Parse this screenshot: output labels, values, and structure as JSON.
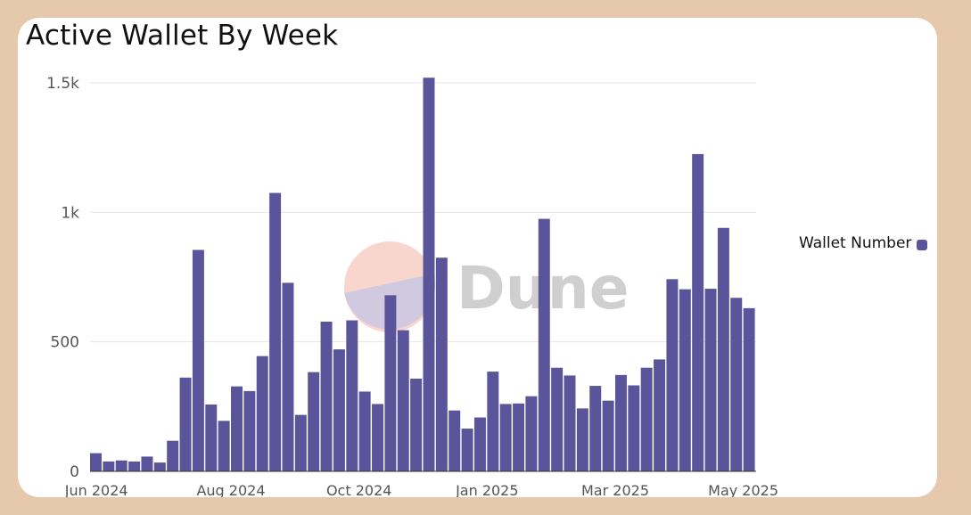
{
  "chart_data": {
    "type": "bar",
    "title": "Active Wallet By Week",
    "xlabel": "",
    "ylabel": "",
    "series": [
      {
        "name": "Wallet Number",
        "color": "#5a559a",
        "values": [
          70,
          38,
          42,
          38,
          57,
          34,
          118,
          362,
          855,
          258,
          195,
          328,
          310,
          445,
          1075,
          728,
          218,
          383,
          578,
          471,
          583,
          308,
          260,
          680,
          545,
          358,
          1520,
          825,
          235,
          165,
          208,
          385,
          260,
          262,
          290,
          975,
          400,
          370,
          243,
          330,
          273,
          372,
          332,
          400,
          432,
          742,
          703,
          1225,
          705,
          940,
          670,
          630
        ]
      }
    ],
    "ylim": [
      0,
      1500
    ],
    "yticks": [
      {
        "value": 0,
        "label": "0"
      },
      {
        "value": 500,
        "label": "500"
      },
      {
        "value": 1000,
        "label": "1k"
      },
      {
        "value": 1500,
        "label": "1.5k"
      }
    ],
    "xticks": [
      {
        "bar_index": 0,
        "label": "Jun 2024"
      },
      {
        "bar_index": 10.5,
        "label": "Aug 2024"
      },
      {
        "bar_index": 20.5,
        "label": "Oct 2024"
      },
      {
        "bar_index": 30.5,
        "label": "Jan 2025"
      },
      {
        "bar_index": 40.5,
        "label": "Mar 2025"
      },
      {
        "bar_index": 50.5,
        "label": "May 2025"
      }
    ],
    "grid": true,
    "legend_position": "right",
    "watermark": "Dune"
  }
}
